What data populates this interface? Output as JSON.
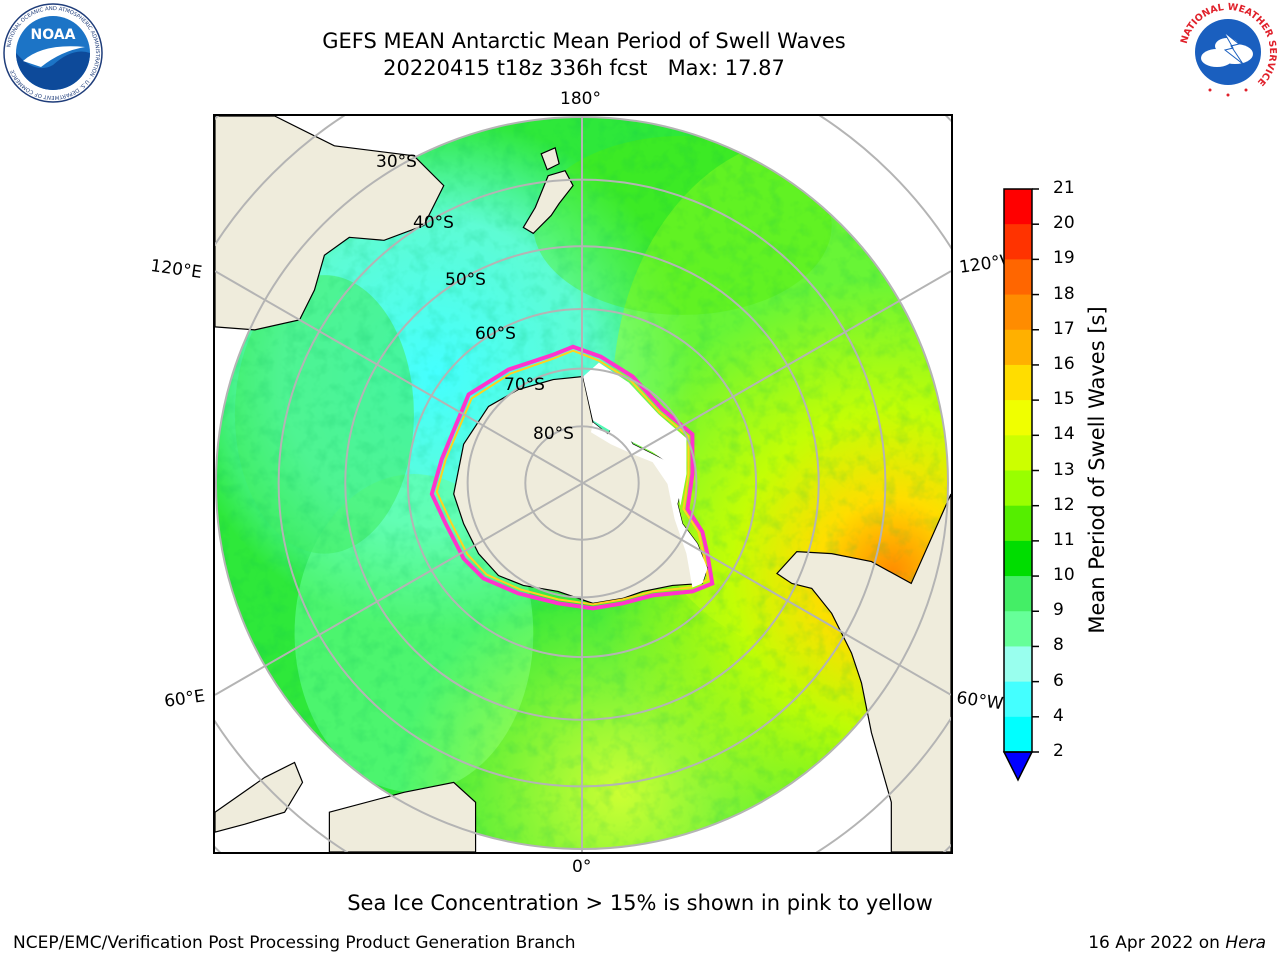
{
  "title": {
    "line1": "GEFS MEAN Antarctic Mean Period of Swell Waves",
    "line2": "20220415 t18z 336h fcst   Max: 17.87"
  },
  "logos": {
    "noaa": {
      "text": "NOAA",
      "ring_text": "NATIONAL OCEANIC AND ATMOSPHERIC ADMINISTRATION · U.S. DEPARTMENT OF COMMERCE"
    },
    "nws": {
      "ring_text": "NATIONAL WEATHER SERVICE"
    }
  },
  "map": {
    "projection": "south-polar-stereographic",
    "longitude_labels": {
      "top": "180°",
      "bottom": "0°",
      "upper_left": "120°E",
      "upper_right": "120°W",
      "lower_left": "60°E",
      "lower_right": "60°W"
    },
    "latitude_labels": [
      "30°S",
      "40°S",
      "50°S",
      "60°S",
      "70°S",
      "80°S"
    ],
    "colors": {
      "land": "#efecdc",
      "grid": "#b4b4b4",
      "ice_edge_pink": "#ff33cc",
      "ice_edge_yellow": "#ffd21e",
      "ice_interior": "#ffffff"
    },
    "dominant_fields": [
      {
        "region": "Pacific sector (lower right, near S. America)",
        "period_s": "13-18"
      },
      {
        "region": "Indian Ocean / Australia sector (upper left)",
        "period_s": "6-9"
      },
      {
        "region": "Atlantic sector (bottom)",
        "period_s": "10-14"
      },
      {
        "region": "Southern Ocean ring",
        "period_s": "9-12"
      }
    ]
  },
  "colorbar": {
    "label": "Mean Period of Swell Waves [s]",
    "ticks": [
      "21",
      "20",
      "19",
      "18",
      "17",
      "16",
      "15",
      "14",
      "13",
      "12",
      "11",
      "10",
      "9",
      "8",
      "6",
      "4",
      "2"
    ],
    "colors": [
      "#ff0000",
      "#ff3300",
      "#ff6600",
      "#ff8c00",
      "#ffb000",
      "#ffdd00",
      "#f0ff00",
      "#ccff00",
      "#99ff00",
      "#55ee00",
      "#00dd00",
      "#44ee66",
      "#66ff99",
      "#99ffee",
      "#44ffff",
      "#00ffff",
      "#0099ff",
      "#0055ff"
    ],
    "extend_color": "#0000ff"
  },
  "ice_note": "Sea Ice Concentration > 15% is shown in pink to yellow",
  "footer": {
    "left": "NCEP/EMC/Verification Post Processing Product Generation Branch",
    "right_date": "16 Apr 2022 on ",
    "right_host": "Hera"
  }
}
